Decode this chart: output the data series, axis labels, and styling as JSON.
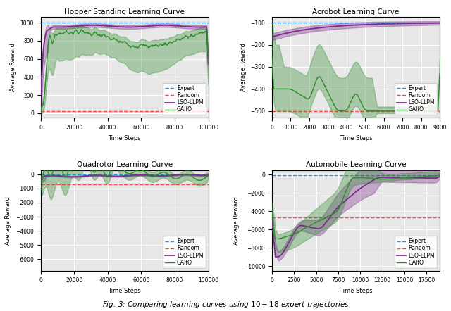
{
  "hopper": {
    "title": "Hopper Standing Learning Curve",
    "xlabel": "Time Steps",
    "ylabel": "Average Reward",
    "expert": 1000,
    "random": 20,
    "xlim": [
      0,
      100000
    ],
    "ylim": [
      -50,
      1060
    ],
    "lso_color": "#7B2D8B",
    "gafo_color": "#2E8B2E",
    "expert_color": "#1E90FF",
    "random_color": "#FF4444"
  },
  "acrobot": {
    "title": "Acrobot Learning Curve",
    "xlabel": "Time Steps",
    "ylabel": "Average Reward",
    "expert": -100,
    "random": -500,
    "xlim": [
      0,
      9000
    ],
    "ylim": [
      -530,
      -75
    ],
    "lso_color": "#7B2D8B",
    "gafo_color": "#2E8B2E",
    "expert_color": "#1E90FF",
    "random_color": "#FF4444"
  },
  "quadrotor": {
    "title": "Quadrotor Learning Curve",
    "xlabel": "Time Steps",
    "ylabel": "Average Reward",
    "expert": 0,
    "random": -700,
    "xlim": [
      0,
      100000
    ],
    "ylim": [
      -6800,
      300
    ],
    "lso_color": "#7B2D8B",
    "gafo_color": "#2E8B2E",
    "expert_color": "#1E90FF",
    "random_color": "#FF4444"
  },
  "automobile": {
    "title": "Automobile Learning Curve",
    "xlabel": "Time Steps",
    "ylabel": "Average Reward",
    "expert": -100,
    "random": -4700,
    "xlim": [
      0,
      19000
    ],
    "ylim": [
      -10500,
      500
    ],
    "lso_color": "#7B2D8B",
    "gafo_color": "#2E8B2E",
    "expert_color": "#1E90FF",
    "random_color": "#FF4444"
  },
  "caption": "Fig. 3: Comparing learning curves using $10-18$ expert trajectories",
  "legend_labels": [
    "Expert",
    "Random",
    "LSO-LLPM",
    "GAIfO"
  ]
}
